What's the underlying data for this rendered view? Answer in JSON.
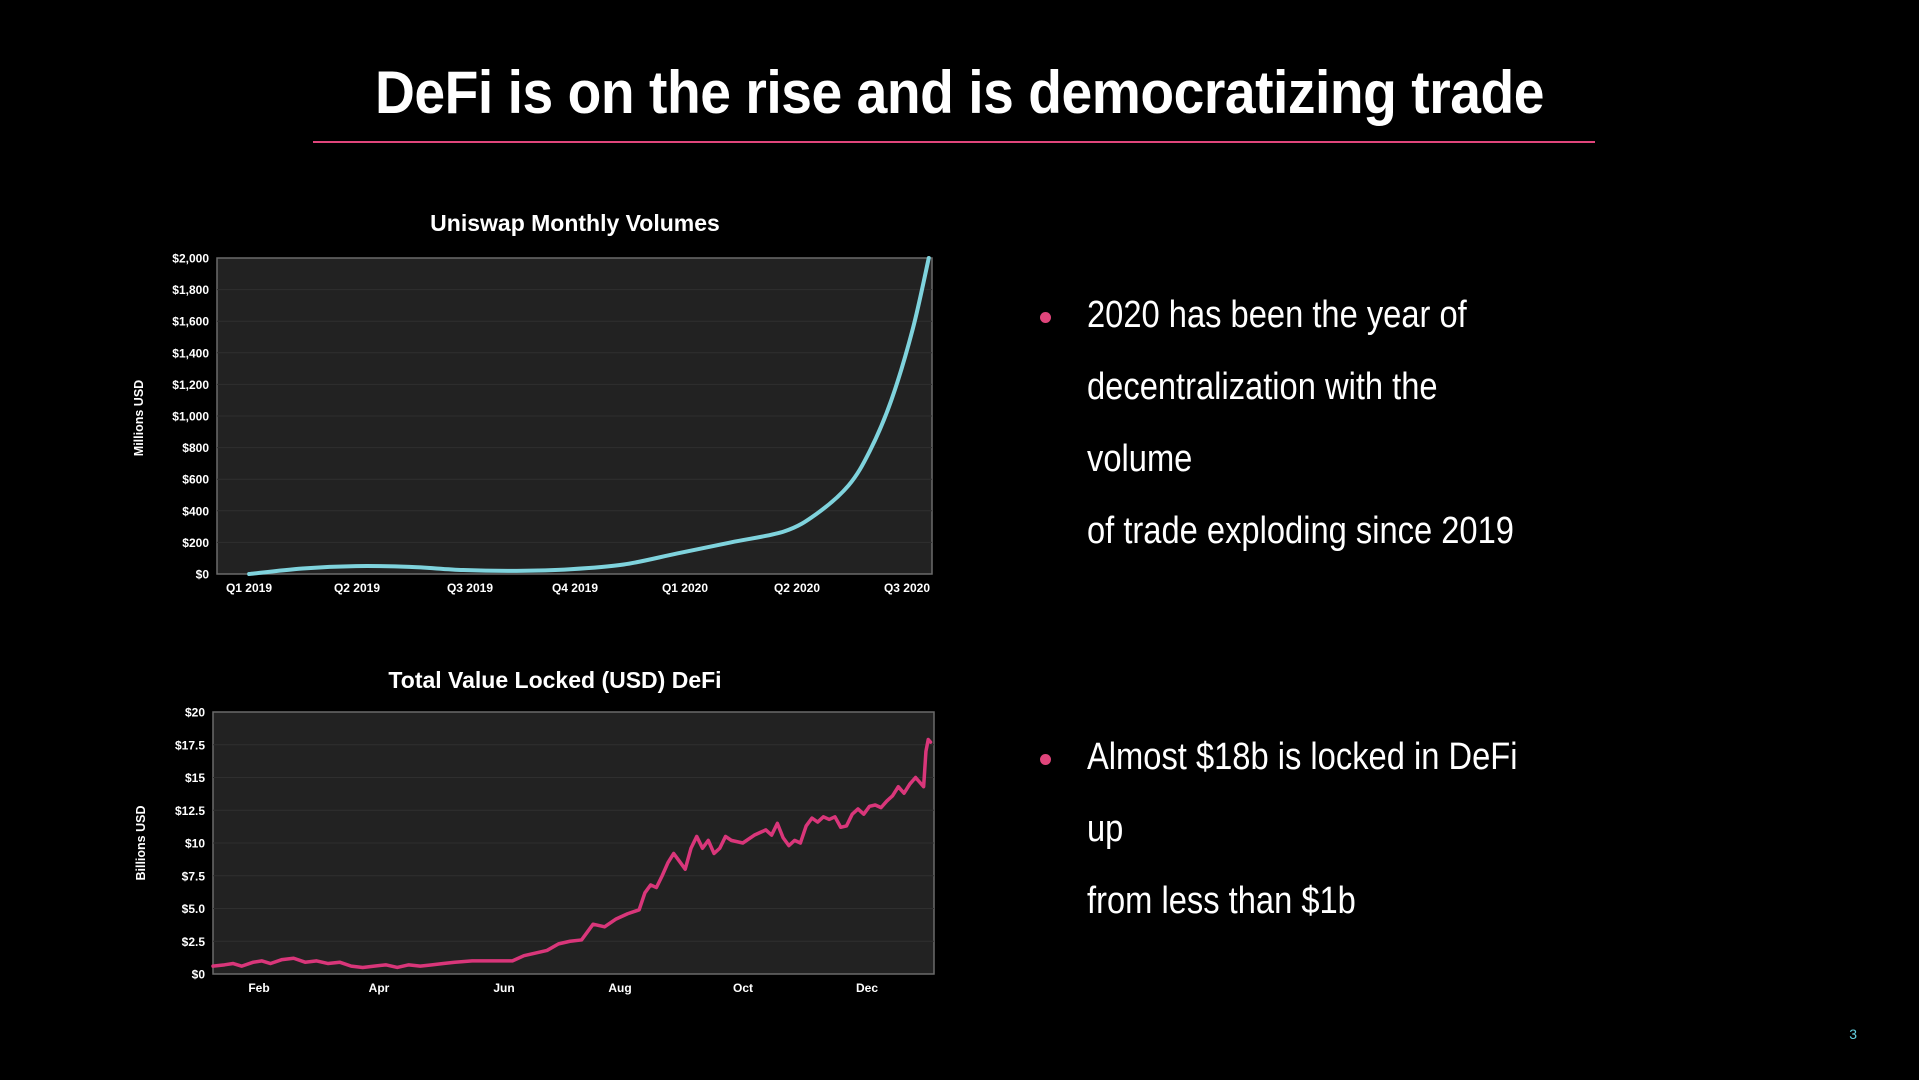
{
  "slide": {
    "title": "DeFi is on the rise and is democratizing trade",
    "page_number": "3",
    "accent_color": "#e0457b"
  },
  "bullets": [
    "2020 has been the year of\ndecentralization with the volume\nof trade exploding since 2019",
    "Almost $18b is locked in DeFi up\nfrom less than $1b"
  ],
  "chart_data": [
    {
      "type": "line",
      "title": "Uniswap Monthly Volumes",
      "ylabel": "Millions USD",
      "xlabel": "",
      "categories": [
        "Q1 2019",
        "Q2 2019",
        "Q3 2019",
        "Q4 2019",
        "Q1 2020",
        "Q2 2020",
        "Q3 2020"
      ],
      "yticks": [
        "$0",
        "$200",
        "$400",
        "$600",
        "$800",
        "$1,000",
        "$1,200",
        "$1,400",
        "$1,600",
        "$1,800",
        "$2,000"
      ],
      "ylim": [
        0,
        2000
      ],
      "line_color": "#7fd3dd",
      "grid": true,
      "series": [
        {
          "values": [
            [
              0.0,
              0
            ],
            [
              0.5,
              35
            ],
            [
              1.0,
              50
            ],
            [
              1.5,
              45
            ],
            [
              2.0,
              25
            ],
            [
              2.5,
              20
            ],
            [
              3.0,
              30
            ],
            [
              3.5,
              60
            ],
            [
              4.0,
              130
            ],
            [
              4.5,
              200
            ],
            [
              5.0,
              270
            ],
            [
              5.3,
              380
            ],
            [
              5.6,
              560
            ],
            [
              5.8,
              780
            ],
            [
              6.0,
              1100
            ],
            [
              6.2,
              1550
            ],
            [
              6.35,
              2000
            ]
          ]
        }
      ]
    },
    {
      "type": "line",
      "title": "Total Value Locked (USD) DeFi",
      "ylabel": "Billions USD",
      "xlabel": "",
      "categories": [
        "Feb",
        "Apr",
        "Jun",
        "Aug",
        "Oct",
        "Dec"
      ],
      "yticks": [
        "$0",
        "$2.5",
        "$5.0",
        "$7.5",
        "$10",
        "$12.5",
        "$15",
        "$17.5",
        "$20"
      ],
      "ylim": [
        0,
        20
      ],
      "line_color": "#d9367a",
      "grid": true,
      "series": [
        {
          "values": [
            [
              0.0,
              0.6
            ],
            [
              0.2,
              0.7
            ],
            [
              0.35,
              0.8
            ],
            [
              0.5,
              0.6
            ],
            [
              0.7,
              0.9
            ],
            [
              0.85,
              1.0
            ],
            [
              1.0,
              0.8
            ],
            [
              1.2,
              1.1
            ],
            [
              1.4,
              1.2
            ],
            [
              1.6,
              0.9
            ],
            [
              1.8,
              1.0
            ],
            [
              2.0,
              0.8
            ],
            [
              2.2,
              0.9
            ],
            [
              2.4,
              0.6
            ],
            [
              2.6,
              0.5
            ],
            [
              2.8,
              0.6
            ],
            [
              3.0,
              0.7
            ],
            [
              3.2,
              0.5
            ],
            [
              3.4,
              0.7
            ],
            [
              3.6,
              0.6
            ],
            [
              3.8,
              0.7
            ],
            [
              4.0,
              0.8
            ],
            [
              4.2,
              0.9
            ],
            [
              4.5,
              1.0
            ],
            [
              4.8,
              1.0
            ],
            [
              5.0,
              1.0
            ],
            [
              5.2,
              1.0
            ],
            [
              5.4,
              1.4
            ],
            [
              5.6,
              1.6
            ],
            [
              5.8,
              1.8
            ],
            [
              6.0,
              2.3
            ],
            [
              6.2,
              2.5
            ],
            [
              6.4,
              2.6
            ],
            [
              6.6,
              3.8
            ],
            [
              6.8,
              3.6
            ],
            [
              7.0,
              4.2
            ],
            [
              7.2,
              4.6
            ],
            [
              7.4,
              4.9
            ],
            [
              7.5,
              6.2
            ],
            [
              7.6,
              6.8
            ],
            [
              7.7,
              6.6
            ],
            [
              7.8,
              7.5
            ],
            [
              7.9,
              8.5
            ],
            [
              8.0,
              9.2
            ],
            [
              8.1,
              8.6
            ],
            [
              8.2,
              8.0
            ],
            [
              8.3,
              9.6
            ],
            [
              8.4,
              10.5
            ],
            [
              8.5,
              9.6
            ],
            [
              8.6,
              10.2
            ],
            [
              8.7,
              9.2
            ],
            [
              8.8,
              9.6
            ],
            [
              8.9,
              10.5
            ],
            [
              9.0,
              10.2
            ],
            [
              9.2,
              10.0
            ],
            [
              9.4,
              10.6
            ],
            [
              9.5,
              10.8
            ],
            [
              9.6,
              11.0
            ],
            [
              9.7,
              10.6
            ],
            [
              9.8,
              11.5
            ],
            [
              9.9,
              10.4
            ],
            [
              10.0,
              9.8
            ],
            [
              10.1,
              10.2
            ],
            [
              10.2,
              10.0
            ],
            [
              10.3,
              11.3
            ],
            [
              10.4,
              11.9
            ],
            [
              10.5,
              11.6
            ],
            [
              10.6,
              12.0
            ],
            [
              10.7,
              11.8
            ],
            [
              10.8,
              12.0
            ],
            [
              10.9,
              11.2
            ],
            [
              11.0,
              11.3
            ],
            [
              11.1,
              12.2
            ],
            [
              11.2,
              12.6
            ],
            [
              11.3,
              12.2
            ],
            [
              11.4,
              12.8
            ],
            [
              11.5,
              12.9
            ],
            [
              11.6,
              12.7
            ],
            [
              11.7,
              13.2
            ],
            [
              11.8,
              13.6
            ],
            [
              11.9,
              14.3
            ],
            [
              12.0,
              13.8
            ],
            [
              12.1,
              14.5
            ],
            [
              12.2,
              15.0
            ],
            [
              12.28,
              14.6
            ],
            [
              12.34,
              14.3
            ],
            [
              12.38,
              17.0
            ],
            [
              12.42,
              17.9
            ],
            [
              12.46,
              17.7
            ]
          ]
        }
      ]
    }
  ]
}
